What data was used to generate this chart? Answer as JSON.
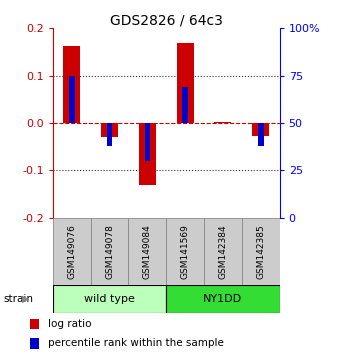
{
  "title": "GDS2826 / 64c3",
  "samples": [
    "GSM149076",
    "GSM149078",
    "GSM149084",
    "GSM141569",
    "GSM142384",
    "GSM142385"
  ],
  "log_ratios": [
    0.163,
    -0.03,
    -0.13,
    0.17,
    0.002,
    -0.028
  ],
  "percentile_ranks": [
    75.0,
    38.0,
    30.0,
    69.0,
    50.0,
    38.0
  ],
  "groups": [
    {
      "label": "wild type",
      "indices": [
        0,
        1,
        2
      ],
      "color": "#bbffbb"
    },
    {
      "label": "NY1DD",
      "indices": [
        3,
        4,
        5
      ],
      "color": "#33dd33"
    }
  ],
  "ylim": [
    -0.2,
    0.2
  ],
  "yticks_left": [
    -0.2,
    -0.1,
    0.0,
    0.1,
    0.2
  ],
  "yticks_right_vals": [
    0,
    25,
    50,
    75,
    100
  ],
  "yticks_right_labels": [
    "0",
    "25",
    "50",
    "75",
    "100%"
  ],
  "bar_color_red": "#cc0000",
  "bar_color_blue": "#0000cc",
  "hline0_color": "#cc0000",
  "hline_color": "#333333",
  "bg_color": "#ffffff",
  "bar_width": 0.45,
  "blue_bar_width": 0.15,
  "sample_box_color": "#cccccc",
  "sample_box_edge": "#888888"
}
